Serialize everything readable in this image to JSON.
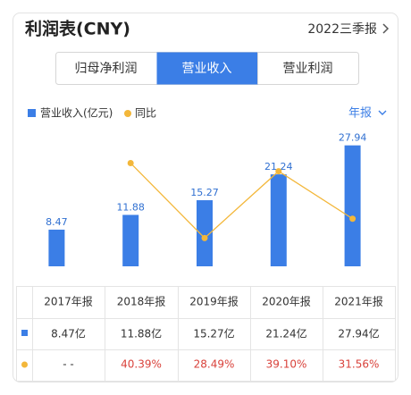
{
  "header": {
    "title": "利润表(CNY)",
    "period": "2022三季报"
  },
  "tabs": [
    "归母净利润",
    "营业收入",
    "营业利润"
  ],
  "active_tab": 1,
  "period_selector": "年报",
  "chart_data": {
    "type": "bar",
    "categories": [
      "2017年报",
      "2018年报",
      "2019年报",
      "2020年报",
      "2021年报"
    ],
    "series": [
      {
        "name": "营业收入(亿元)",
        "color": "#3b7ee6",
        "values": [
          8.47,
          11.88,
          15.27,
          21.24,
          27.94
        ]
      },
      {
        "name": "同比",
        "type": "line",
        "axis": "y2",
        "color": "#f3b73a",
        "values": [
          null,
          40.39,
          28.49,
          39.1,
          31.56
        ]
      }
    ],
    "ylim": [
      0,
      32
    ],
    "y2lim": [
      24,
      46
    ]
  },
  "table": {
    "rows": [
      [
        "8.47亿",
        "11.88亿",
        "15.27亿",
        "21.24亿",
        "27.94亿"
      ],
      [
        "- -",
        "40.39%",
        "28.49%",
        "39.10%",
        "31.56%"
      ]
    ]
  }
}
